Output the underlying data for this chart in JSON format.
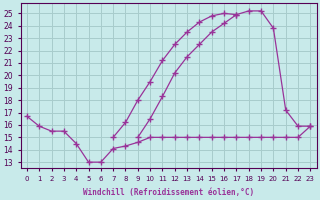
{
  "xlabel": "Windchill (Refroidissement éolien,°C)",
  "x_ticks": [
    0,
    1,
    2,
    3,
    4,
    5,
    6,
    7,
    8,
    9,
    10,
    11,
    12,
    13,
    14,
    15,
    16,
    17,
    18,
    19,
    20,
    21,
    22,
    23
  ],
  "y_ticks": [
    13,
    14,
    15,
    16,
    17,
    18,
    19,
    20,
    21,
    22,
    23,
    24,
    25
  ],
  "ylim": [
    12.5,
    25.8
  ],
  "xlim": [
    -0.5,
    23.5
  ],
  "bg_color": "#c8eaea",
  "grid_color": "#a8cccc",
  "line_color": "#993399",
  "series1_x": [
    0,
    1,
    2,
    3,
    4,
    5,
    6,
    7,
    8,
    9,
    10,
    11,
    12,
    13,
    14,
    15,
    16,
    17,
    18,
    19,
    20,
    21,
    22,
    23
  ],
  "series1_y": [
    16.7,
    15.9,
    15.5,
    15.5,
    14.5,
    13.0,
    13.0,
    14.1,
    14.3,
    14.6,
    15.0,
    15.0,
    15.0,
    15.0,
    15.0,
    15.0,
    15.0,
    15.0,
    15.0,
    15.0,
    15.0,
    15.0,
    15.0,
    15.9
  ],
  "series2_x": [
    0,
    1,
    2,
    3,
    4,
    5,
    6,
    7,
    8,
    9,
    10,
    11,
    12,
    13,
    14,
    15,
    16,
    17,
    18,
    19,
    20,
    21,
    22,
    23
  ],
  "series2_y": [
    null,
    null,
    null,
    null,
    null,
    null,
    null,
    15.0,
    16.2,
    18.0,
    19.5,
    21.2,
    22.5,
    23.5,
    24.3,
    24.8,
    25.0,
    24.9,
    null,
    null,
    null,
    null,
    null,
    null
  ],
  "series3_x": [
    0,
    1,
    2,
    3,
    4,
    5,
    6,
    7,
    8,
    9,
    10,
    11,
    12,
    13,
    14,
    15,
    16,
    17,
    18,
    19,
    20,
    21,
    22,
    23
  ],
  "series3_y": [
    null,
    null,
    null,
    null,
    null,
    null,
    null,
    null,
    null,
    15.0,
    16.5,
    18.3,
    20.2,
    21.5,
    22.5,
    23.5,
    24.2,
    24.9,
    25.2,
    25.2,
    23.8,
    17.2,
    15.9,
    15.9
  ]
}
